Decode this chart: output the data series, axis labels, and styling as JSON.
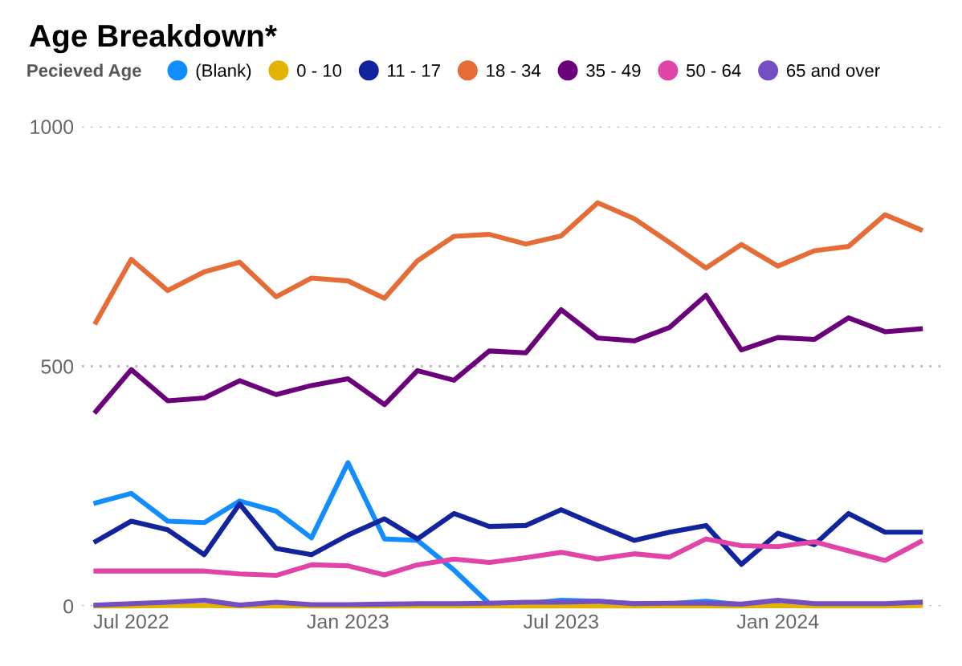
{
  "chart_data": {
    "type": "line",
    "title": "Age Breakdown*",
    "legend_title": "Pecieved Age",
    "legend": "top left",
    "grid": "y",
    "marker": "none",
    "line_style": "solid",
    "x": [
      "2022-06",
      "2022-07",
      "2022-08",
      "2022-09",
      "2022-10",
      "2022-11",
      "2022-12",
      "2023-01",
      "2023-02",
      "2023-03",
      "2023-04",
      "2023-05",
      "2023-06",
      "2023-07",
      "2023-08",
      "2023-09",
      "2023-10",
      "2023-11",
      "2023-12",
      "2024-01",
      "2024-02",
      "2024-03",
      "2024-04",
      "2024-05"
    ],
    "xlim": [
      "2022-05-20",
      "2024-05-20"
    ],
    "xticks": [
      {
        "value": "2022-07",
        "label": "Jul 2022"
      },
      {
        "value": "2023-01",
        "label": "Jan 2023"
      },
      {
        "value": "2023-07",
        "label": "Jul 2023"
      },
      {
        "value": "2024-01",
        "label": "Jan 2024"
      }
    ],
    "ylim": [
      0,
      1000
    ],
    "yticks": [
      0,
      500,
      1000
    ],
    "series": [
      {
        "name": "(Blank)",
        "color": "#118dff",
        "values": [
          215,
          235,
          177,
          174,
          219,
          198,
          142,
          299,
          140,
          137,
          75,
          5,
          5,
          12,
          10,
          5,
          5,
          10,
          3,
          5,
          null,
          null,
          null,
          null
        ]
      },
      {
        "name": "0 - 10",
        "color": "#e0b400",
        "values": [
          0,
          0,
          1,
          1,
          0,
          0,
          0,
          0,
          0,
          0,
          0,
          0,
          0,
          0,
          0,
          0,
          0,
          0,
          0,
          1,
          0,
          0,
          0,
          1
        ]
      },
      {
        "name": "11 - 17",
        "color": "#12239e",
        "values": [
          135,
          177,
          159,
          107,
          213,
          120,
          107,
          148,
          182,
          140,
          193,
          166,
          168,
          201,
          168,
          137,
          154,
          168,
          87,
          152,
          128,
          193,
          154,
          154
        ]
      },
      {
        "name": "18 - 34",
        "color": "#e66c37",
        "values": [
          592,
          723,
          658,
          697,
          717,
          645,
          684,
          678,
          642,
          720,
          771,
          775,
          755,
          772,
          841,
          808,
          758,
          705,
          754,
          709,
          741,
          750,
          816,
          785
        ]
      },
      {
        "name": "35 - 49",
        "color": "#6b007b",
        "values": [
          406,
          493,
          428,
          434,
          470,
          441,
          460,
          474,
          420,
          491,
          471,
          532,
          528,
          618,
          559,
          553,
          581,
          648,
          534,
          560,
          556,
          601,
          572,
          578
        ]
      },
      {
        "name": "50 - 64",
        "color": "#e044a7",
        "values": [
          73,
          73,
          73,
          73,
          67,
          64,
          86,
          84,
          65,
          86,
          98,
          91,
          101,
          112,
          98,
          109,
          102,
          140,
          126,
          124,
          134,
          115,
          95,
          134
        ]
      },
      {
        "name": "65 and over",
        "color": "#744ec2",
        "values": [
          2,
          5,
          8,
          12,
          2,
          8,
          3,
          3,
          4,
          5,
          5,
          6,
          8,
          8,
          10,
          5,
          6,
          6,
          4,
          12,
          5,
          5,
          5,
          8
        ]
      }
    ]
  }
}
